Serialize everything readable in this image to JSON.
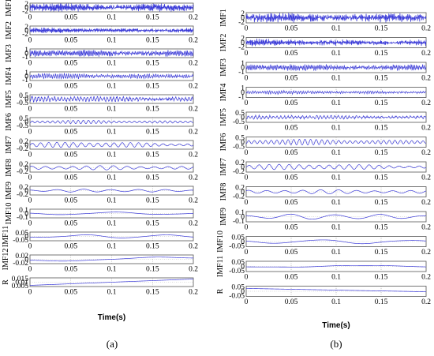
{
  "chart_data": [
    {
      "type": "line",
      "panel_label": "(a)",
      "xlabel": "Time(s)",
      "xlim": [
        0,
        0.2
      ],
      "xticks": [
        "0",
        "0.05",
        "0.1",
        "0.15",
        "0.2"
      ],
      "grid": true,
      "color": "#3a3ad8",
      "series": [
        {
          "name": "IMF1",
          "yticks": [
            "2",
            "0",
            "-2"
          ],
          "amplitude": 1.0,
          "cycles": 260
        },
        {
          "name": "IMF2",
          "yticks": [
            "2",
            "0",
            "-2"
          ],
          "amplitude": 0.55,
          "cycles": 170
        },
        {
          "name": "IMF3",
          "yticks": [
            "1",
            "0",
            "-1"
          ],
          "amplitude": 0.75,
          "cycles": 110
        },
        {
          "name": "IMF4",
          "yticks": [
            "1",
            "0",
            "-1"
          ],
          "amplitude": 0.55,
          "cycles": 75
        },
        {
          "name": "IMF5",
          "yticks": [
            "0.5",
            "0",
            "-0.5"
          ],
          "amplitude": 0.6,
          "cycles": 50
        },
        {
          "name": "IMF6",
          "yticks": [
            "0.5",
            "0",
            "-0.5"
          ],
          "amplitude": 0.45,
          "cycles": 32
        },
        {
          "name": "IMF7",
          "yticks": [
            "0.2",
            "0",
            "-0.2"
          ],
          "amplitude": 0.7,
          "cycles": 20
        },
        {
          "name": "IMF8",
          "yticks": [
            "0.2",
            "0",
            "-0.2"
          ],
          "amplitude": 0.55,
          "cycles": 12
        },
        {
          "name": "IMF9",
          "yticks": [
            "0.2",
            "0",
            "-0.2"
          ],
          "amplitude": 0.4,
          "cycles": 6
        },
        {
          "name": "IMF10",
          "yticks": [
            "0.1",
            "0",
            "-0.1"
          ],
          "amplitude": 0.4,
          "cycles": 1.6
        },
        {
          "name": "IMF11",
          "yticks": [
            "0.05",
            "0",
            "-0.05"
          ],
          "amplitude": 0.5,
          "cycles": 2
        },
        {
          "name": "IMF12",
          "yticks": [
            "0.02",
            "0",
            "-0.02"
          ],
          "amplitude": 0.8,
          "cycles": 0.5
        },
        {
          "name": "R",
          "yticks": [
            "0.015",
            "0.01",
            "0.005"
          ],
          "amplitude": 0.0,
          "cycles": 0,
          "trend": "rising"
        }
      ]
    },
    {
      "type": "line",
      "panel_label": "(b)",
      "xlabel": "Time(s)",
      "xlim": [
        0,
        0.2
      ],
      "xticks": [
        "0",
        "0.05",
        "0.1",
        "0.15",
        "0.2"
      ],
      "grid": true,
      "color": "#3a3ad8",
      "series": [
        {
          "name": "IMF1",
          "yticks": [
            "2",
            "0",
            "-2"
          ],
          "amplitude": 0.9,
          "cycles": 260
        },
        {
          "name": "IMF2",
          "yticks": [
            "2",
            "0",
            "-2"
          ],
          "amplitude": 0.6,
          "cycles": 170
        },
        {
          "name": "IMF3",
          "yticks": [
            "1",
            "0",
            "-1"
          ],
          "amplitude": 0.6,
          "cycles": 110
        },
        {
          "name": "IMF4",
          "yticks": [
            "1",
            "0",
            "-1"
          ],
          "amplitude": 0.3,
          "cycles": 75
        },
        {
          "name": "IMF5",
          "yticks": [
            "0.5",
            "0",
            "-0.5"
          ],
          "amplitude": 0.35,
          "cycles": 50
        },
        {
          "name": "IMF6",
          "yticks": [
            "0.5",
            "0",
            "-0.5"
          ],
          "amplitude": 0.6,
          "cycles": 32
        },
        {
          "name": "IMF7",
          "yticks": [
            "0.2",
            "0",
            "-0.2"
          ],
          "amplitude": 0.6,
          "cycles": 18
        },
        {
          "name": "IMF8",
          "yticks": [
            "0.2",
            "0",
            "-0.2"
          ],
          "amplitude": 0.45,
          "cycles": 10
        },
        {
          "name": "IMF9",
          "yticks": [
            "0.1",
            "0",
            "-0.1"
          ],
          "amplitude": 0.6,
          "cycles": 4
        },
        {
          "name": "IMF10",
          "yticks": [
            "0.05",
            "0",
            "-0.05"
          ],
          "amplitude": 0.5,
          "cycles": 2
        },
        {
          "name": "IMF11",
          "yticks": [
            "0.05",
            "0",
            "-0.05"
          ],
          "amplitude": 0.3,
          "cycles": 1
        },
        {
          "name": "R",
          "yticks": [
            "0.05",
            "0",
            "-0.05"
          ],
          "amplitude": 0.0,
          "cycles": 0,
          "trend": "falling"
        }
      ]
    }
  ]
}
